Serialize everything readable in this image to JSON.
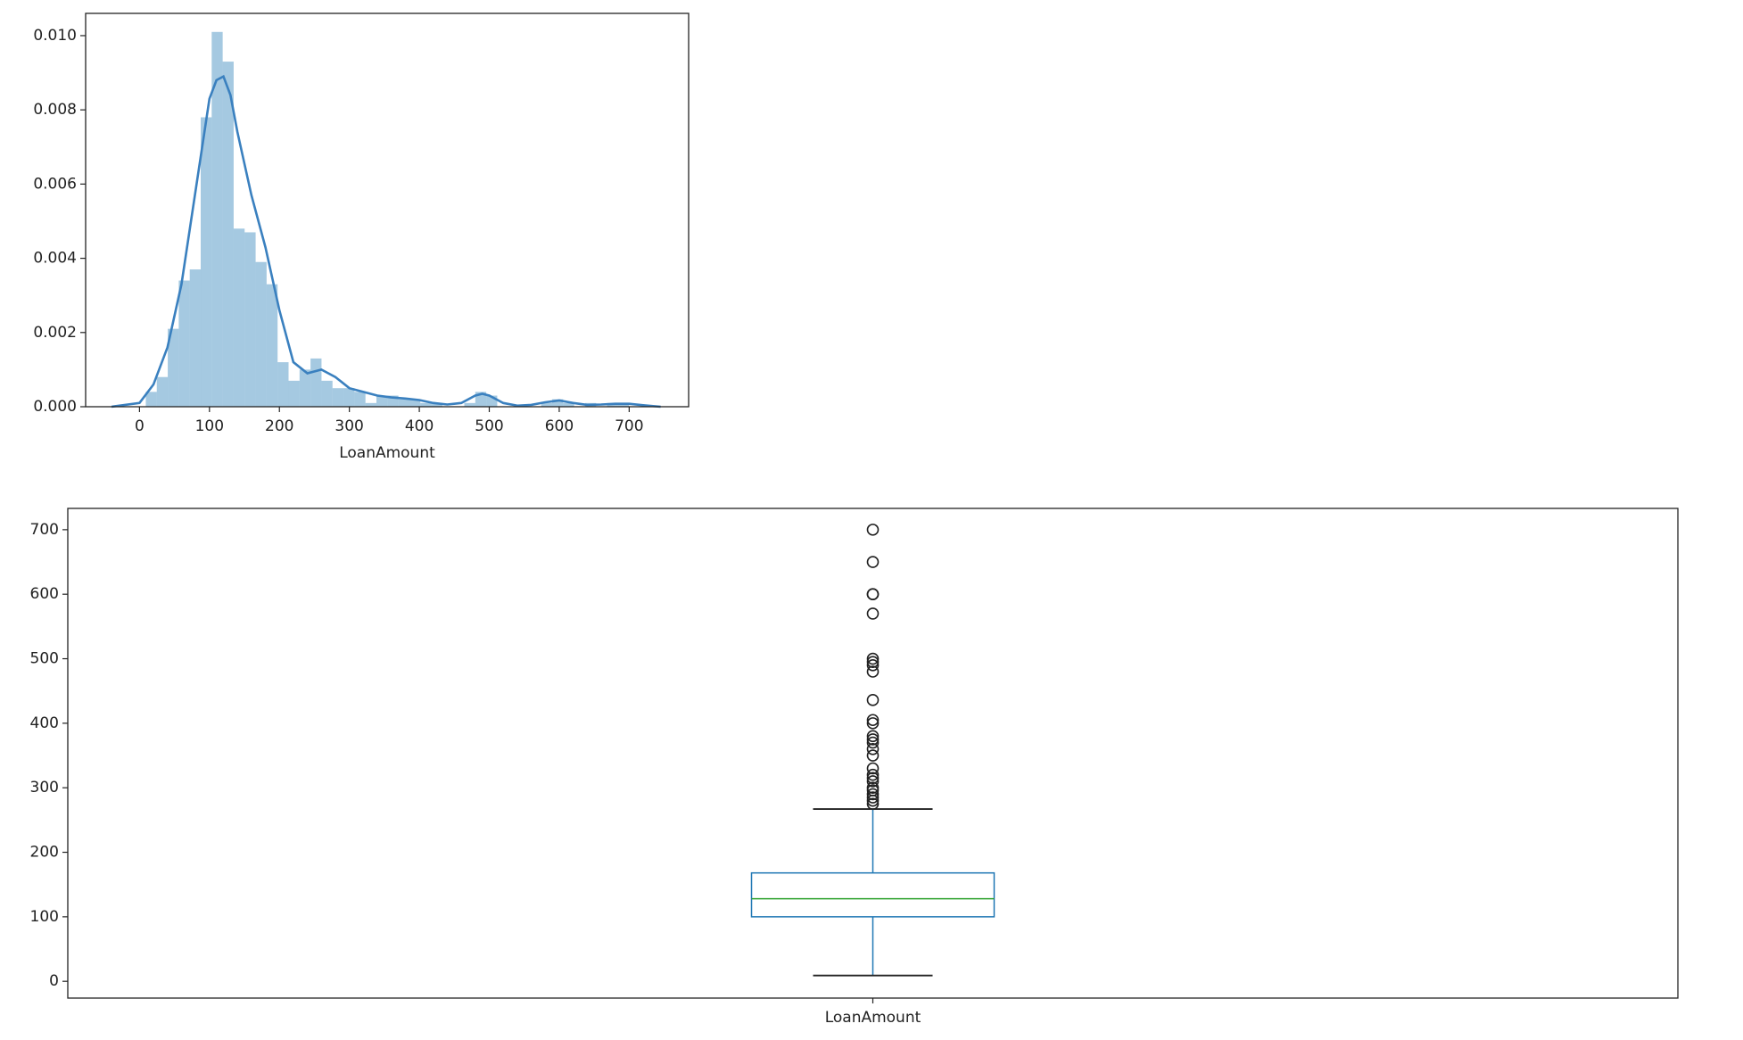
{
  "chart_data": [
    {
      "type": "histogram",
      "xlabel": "LoanAmount",
      "bins": [
        9,
        24.7,
        40.4,
        56.1,
        71.8,
        87.5,
        103.2,
        118.9,
        134.6,
        150.3,
        166,
        181.7,
        197.4,
        213.1,
        228.8,
        244.5,
        260.2,
        275.9,
        291.6,
        307.3,
        323,
        338.7,
        354.4,
        370.1,
        385.8,
        401.5,
        417.2,
        432.9,
        448.6,
        464.3,
        480,
        495.7,
        511.4,
        527.1,
        542.8,
        558.5,
        574.2,
        589.9,
        605.6,
        621.3,
        637,
        652.7,
        668.4,
        684.1,
        699.8
      ],
      "values": [
        0.0004,
        0.0008,
        0.0021,
        0.0034,
        0.0037,
        0.0078,
        0.0101,
        0.0093,
        0.0048,
        0.0047,
        0.0039,
        0.0033,
        0.0012,
        0.0007,
        0.001,
        0.0013,
        0.0007,
        0.0005,
        0.0005,
        0.0004,
        0.0001,
        0.0003,
        0.0003,
        0.0002,
        0.0002,
        0.0001,
        0.0001,
        0,
        0,
        0.0001,
        0.0004,
        0.0003,
        0,
        0,
        0,
        0,
        0.0001,
        0.0002,
        0.0001,
        0,
        0.0001,
        0,
        0.0001,
        0.0001
      ],
      "color": "#1f77b4",
      "line": {
        "color": "#3a80bf",
        "x": [
          -40,
          0,
          20,
          40,
          60,
          80,
          100,
          110,
          120,
          130,
          140,
          160,
          180,
          200,
          220,
          240,
          260,
          280,
          300,
          320,
          340,
          360,
          380,
          400,
          420,
          440,
          460,
          480,
          490,
          500,
          520,
          540,
          560,
          580,
          600,
          620,
          640,
          660,
          680,
          700,
          720,
          745
        ],
        "values": [
          0,
          0.0001,
          0.0006,
          0.0016,
          0.0033,
          0.0058,
          0.0083,
          0.0088,
          0.0089,
          0.0084,
          0.0074,
          0.0057,
          0.0043,
          0.0026,
          0.0012,
          0.0009,
          0.001,
          0.0008,
          0.0005,
          0.0004,
          0.0003,
          0.00025,
          0.00022,
          0.00018,
          0.0001,
          6e-05,
          0.0001,
          0.0003,
          0.00035,
          0.0003,
          0.0001,
          3e-05,
          5e-05,
          0.00012,
          0.00017,
          0.0001,
          5e-05,
          6e-05,
          8e-05,
          8e-05,
          4e-05,
          0
        ]
      },
      "xlim": [
        -77,
        785
      ],
      "xticks": [
        0,
        100,
        200,
        300,
        400,
        500,
        600,
        700
      ],
      "ylim": [
        0,
        0.0106
      ],
      "yticks": [
        {
          "value": 0,
          "label": "0.000"
        },
        {
          "value": 0.002,
          "label": "0.002"
        },
        {
          "value": 0.004,
          "label": "0.004"
        },
        {
          "value": 0.006,
          "label": "0.006"
        },
        {
          "value": 0.008,
          "label": "0.008"
        },
        {
          "value": 0.01,
          "label": "0.010"
        }
      ]
    },
    {
      "type": "box",
      "categories": [
        "LoanAmount"
      ],
      "whislo": 9,
      "q1": 100,
      "median": 128,
      "q3": 168,
      "whishi": 267,
      "fliers": [
        700,
        650,
        600,
        600,
        570,
        500,
        495,
        490,
        480,
        436,
        405,
        400,
        380,
        375,
        370,
        360,
        350,
        330,
        320,
        315,
        310,
        300,
        296,
        290,
        285,
        280,
        275
      ],
      "color": "#1f77b4",
      "median_color": "#2ca02c",
      "whisker_color": "#222222",
      "ylim": [
        -26,
        733
      ],
      "yticks": [
        0,
        100,
        200,
        300,
        400,
        500,
        600,
        700
      ]
    }
  ]
}
